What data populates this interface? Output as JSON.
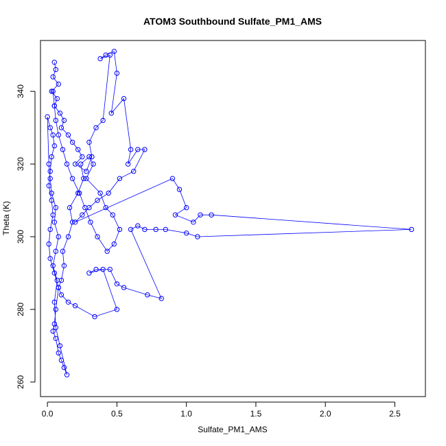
{
  "chart_data": {
    "type": "scatter",
    "title": "ATOM3 Southbound Sulfate_PM1_AMS",
    "xlabel": "Sulfate_PM1_AMS",
    "ylabel": "Theta (K)",
    "xlim": [
      -0.05,
      2.72
    ],
    "ylim": [
      256,
      354
    ],
    "xticks": [
      0,
      0.5,
      1,
      1.5,
      2,
      2.5
    ],
    "xtick_labels": [
      "0.0",
      "0.5",
      "1.0",
      "1.5",
      "2.0",
      "2.5"
    ],
    "yticks": [
      260,
      280,
      300,
      320,
      340
    ],
    "ytick_labels": [
      "260",
      "280",
      "300",
      "320",
      "340"
    ],
    "series_color": "#0000ff",
    "marker": "open-circle",
    "connected": true,
    "grid": false,
    "legend": "none",
    "x": [
      0.05,
      0.06,
      0.04,
      0.08,
      0.03,
      0.07,
      0.05,
      0.09,
      0.12,
      0.1,
      0.15,
      0.18,
      0.22,
      0.25,
      0.2,
      0.28,
      0.32,
      0.3,
      0.35,
      0.4,
      0.45,
      0.38,
      0.42,
      0.48,
      0.5,
      0.46,
      0.55,
      0.6,
      0.58,
      0.65,
      0.7,
      0.62,
      0.52,
      0.44,
      0.36,
      0.3,
      0.25,
      0.2,
      0.9,
      0.95,
      1.0,
      0.92,
      1.05,
      1.1,
      1.18,
      2.62,
      1.08,
      1.0,
      0.85,
      0.78,
      0.7,
      0.65,
      0.6,
      0.82,
      0.72,
      0.55,
      0.5,
      0.45,
      0.35,
      0.3,
      0.4,
      0.5,
      0.34,
      0.2,
      0.15,
      0.1,
      0.08,
      0.06,
      0.05,
      0.04,
      0.06,
      0.08,
      0.1,
      0.12,
      0.14,
      0.09,
      0.06,
      0.05,
      0.07,
      0.04,
      0.06,
      0.08,
      0.05,
      0.06,
      0.03,
      0.02,
      0.01,
      0.0,
      0.02,
      0.04,
      0.05,
      0.03,
      0.02,
      0.01,
      0.03,
      0.04,
      0.02,
      0.01,
      0.02,
      0.05,
      0.08,
      0.1,
      0.12,
      0.11,
      0.15,
      0.18,
      0.16,
      0.22,
      0.26,
      0.24,
      0.3,
      0.33,
      0.28,
      0.38,
      0.42,
      0.47,
      0.52,
      0.48,
      0.43,
      0.36,
      0.31,
      0.27,
      0.23,
      0.18,
      0.14,
      0.11,
      0.08,
      0.06,
      0.05,
      0.04
    ],
    "y": [
      348,
      346,
      344,
      342,
      340,
      338,
      336,
      334,
      332,
      330,
      328,
      326,
      324,
      322,
      320,
      318,
      322,
      326,
      330,
      332,
      350,
      349,
      350,
      351,
      345,
      334,
      338,
      324,
      320,
      324,
      324,
      318,
      316,
      312,
      310,
      308,
      306,
      304,
      316,
      313,
      308,
      306,
      304,
      306,
      306,
      302,
      300,
      301,
      302,
      302,
      302,
      303,
      302,
      283,
      284,
      286,
      287,
      291,
      291,
      290,
      291,
      280,
      278,
      281,
      282,
      284,
      286,
      280,
      276,
      274,
      272,
      268,
      266,
      264,
      262,
      270,
      275,
      282,
      288,
      292,
      296,
      300,
      304,
      308,
      312,
      316,
      320,
      333,
      330,
      328,
      325,
      322,
      318,
      314,
      310,
      306,
      302,
      298,
      294,
      290,
      286,
      288,
      292,
      296,
      300,
      304,
      308,
      312,
      316,
      320,
      322,
      320,
      316,
      312,
      308,
      306,
      302,
      298,
      296,
      300,
      304,
      308,
      312,
      316,
      320,
      324,
      328,
      332,
      336,
      340
    ]
  }
}
